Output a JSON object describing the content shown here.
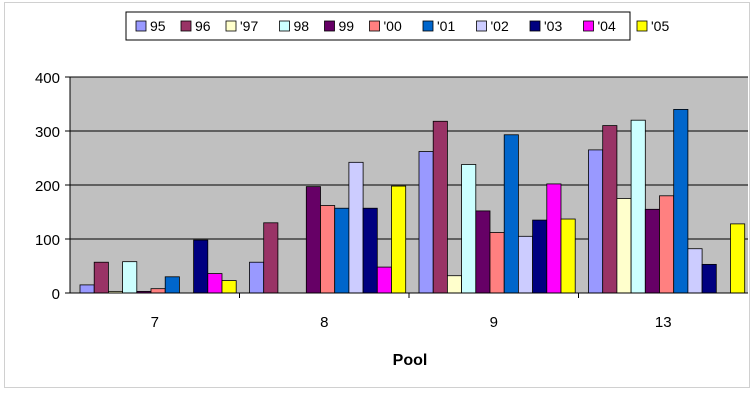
{
  "chart_data": {
    "type": "bar",
    "title": "",
    "xlabel": "Pool",
    "ylabel": "",
    "categories": [
      "7",
      "8",
      "9",
      "13"
    ],
    "ylim": [
      0,
      400
    ],
    "yticks": [
      "0",
      "100",
      "200",
      "300",
      "400"
    ],
    "grid": true,
    "legend_position": "top",
    "series": [
      {
        "name": "95",
        "color": "#9999ff",
        "values": [
          15,
          57,
          262,
          265
        ]
      },
      {
        "name": "96",
        "color": "#993366",
        "values": [
          57,
          130,
          318,
          310
        ]
      },
      {
        "name": "'97",
        "color": "#ffffcc",
        "values": [
          3,
          0,
          32,
          175
        ]
      },
      {
        "name": "98",
        "color": "#ccffff",
        "values": [
          58,
          0,
          238,
          320
        ]
      },
      {
        "name": "99",
        "color": "#660066",
        "values": [
          3,
          197,
          152,
          155
        ]
      },
      {
        "name": "'00",
        "color": "#ff8080",
        "values": [
          8,
          162,
          112,
          180
        ]
      },
      {
        "name": "'01",
        "color": "#0066cc",
        "values": [
          30,
          157,
          293,
          340
        ]
      },
      {
        "name": "'02",
        "color": "#ccccff",
        "values": [
          0,
          242,
          105,
          82
        ]
      },
      {
        "name": "'03",
        "color": "#000080",
        "values": [
          98,
          157,
          135,
          53
        ]
      },
      {
        "name": "'04",
        "color": "#ff00ff",
        "values": [
          36,
          48,
          202,
          0
        ]
      },
      {
        "name": "'05",
        "color": "#ffff00",
        "values": [
          23,
          198,
          137,
          128
        ]
      }
    ]
  }
}
